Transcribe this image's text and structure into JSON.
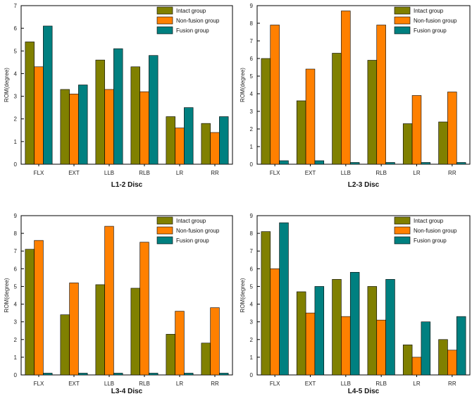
{
  "colors": {
    "intact": "#808000",
    "nonfusion": "#ff8000",
    "fusion": "#008080"
  },
  "chart_data": [
    {
      "type": "bar",
      "title": "L1-2 Disc",
      "xlabel": "",
      "ylabel": "ROM(degree)",
      "ylim": [
        0,
        7
      ],
      "yticks": [
        "0",
        "1",
        "2",
        "3",
        "4",
        "5",
        "6",
        "7"
      ],
      "categories": [
        "FLX",
        "EXT",
        "LLB",
        "RLB",
        "LR",
        "RR"
      ],
      "legend_position": "top-right",
      "series": [
        {
          "name": "Intact group",
          "values": [
            5.4,
            3.3,
            4.6,
            4.3,
            2.1,
            1.8
          ]
        },
        {
          "name": "Non-fusion group",
          "values": [
            4.3,
            3.1,
            3.3,
            3.2,
            1.6,
            1.4
          ]
        },
        {
          "name": "Fusion group",
          "values": [
            6.1,
            3.5,
            5.1,
            4.8,
            2.5,
            2.1
          ]
        }
      ]
    },
    {
      "type": "bar",
      "title": "L2-3 Disc",
      "xlabel": "",
      "ylabel": "ROM(degree)",
      "ylim": [
        0,
        9
      ],
      "yticks": [
        "0",
        "1",
        "2",
        "3",
        "4",
        "5",
        "6",
        "7",
        "8",
        "9"
      ],
      "categories": [
        "FLX",
        "EXT",
        "LLB",
        "RLB",
        "LR",
        "RR"
      ],
      "legend_position": "top-right",
      "series": [
        {
          "name": "Intact group",
          "values": [
            6.0,
            3.6,
            6.3,
            5.9,
            2.3,
            2.4
          ]
        },
        {
          "name": "Non-fusion group",
          "values": [
            7.9,
            5.4,
            8.7,
            7.9,
            3.9,
            4.1
          ]
        },
        {
          "name": "Fusion group",
          "values": [
            0.2,
            0.2,
            0.1,
            0.1,
            0.1,
            0.1
          ]
        }
      ]
    },
    {
      "type": "bar",
      "title": "L3-4 Disc",
      "xlabel": "",
      "ylabel": "ROM(degree)",
      "ylim": [
        0,
        9
      ],
      "yticks": [
        "0",
        "1",
        "2",
        "3",
        "4",
        "5",
        "6",
        "7",
        "8",
        "9"
      ],
      "categories": [
        "FLX",
        "EXT",
        "LLB",
        "RLB",
        "LR",
        "RR"
      ],
      "legend_position": "top-right",
      "series": [
        {
          "name": "Intact group",
          "values": [
            7.1,
            3.4,
            5.1,
            4.9,
            2.3,
            1.8
          ]
        },
        {
          "name": "Non-fusion group",
          "values": [
            7.6,
            5.2,
            8.4,
            7.5,
            3.6,
            3.8
          ]
        },
        {
          "name": "Fusion group",
          "values": [
            0.1,
            0.1,
            0.1,
            0.1,
            0.1,
            0.1
          ]
        }
      ]
    },
    {
      "type": "bar",
      "title": "L4-5 Disc",
      "xlabel": "",
      "ylabel": "ROM(degree)",
      "ylim": [
        0,
        9
      ],
      "yticks": [
        "0",
        "1",
        "2",
        "3",
        "4",
        "5",
        "6",
        "7",
        "8",
        "9"
      ],
      "categories": [
        "FLX",
        "EXT",
        "LLB",
        "RLB",
        "LR",
        "RR"
      ],
      "legend_position": "top-right",
      "series": [
        {
          "name": "Intact group",
          "values": [
            8.1,
            4.7,
            5.4,
            5.0,
            1.7,
            2.0
          ]
        },
        {
          "name": "Non-fusion group",
          "values": [
            6.0,
            3.5,
            3.3,
            3.1,
            1.0,
            1.4
          ]
        },
        {
          "name": "Fusion group",
          "values": [
            8.6,
            5.0,
            5.8,
            5.4,
            3.0,
            3.3
          ]
        }
      ]
    }
  ]
}
